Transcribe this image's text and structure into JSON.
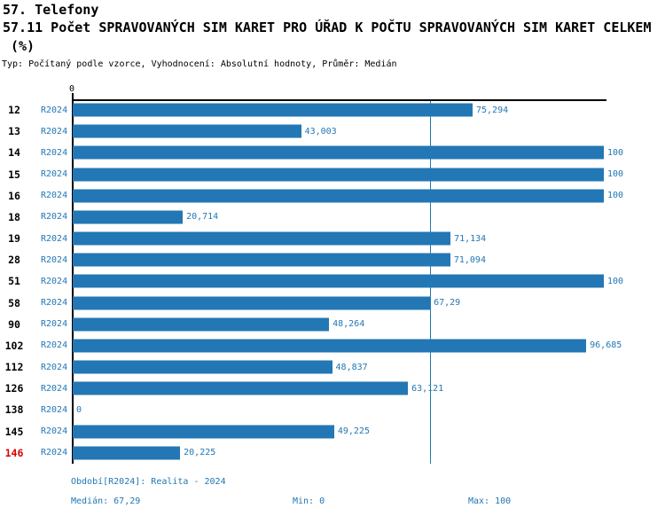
{
  "header": {
    "section_title": "57. Telefony",
    "title": "57.11 Počet SPRAVOVANÝCH SIM KARET PRO ÚŘAD K POČTU SPRAVOVANÝCH SIM KARET CELKEM",
    "title_unit": "(%)",
    "subtitle": "Typ: Počítaný podle vzorce, Vyhodnocení: Absolutní hodnoty, Průměr: Medián"
  },
  "chart_data": {
    "type": "bar",
    "orientation": "horizontal",
    "title": "57.11 Počet SPRAVOVANÝCH SIM KARET PRO ÚŘAD K POČTU SPRAVOVANÝCH SIM KARET CELKEM (%)",
    "categories": [
      "12",
      "13",
      "14",
      "15",
      "16",
      "18",
      "19",
      "28",
      "51",
      "58",
      "90",
      "102",
      "112",
      "126",
      "138",
      "145",
      "146"
    ],
    "series": [
      {
        "name": "R2024",
        "values": [
          75.294,
          43.003,
          100,
          100,
          100,
          20.714,
          71.134,
          71.094,
          100,
          67.29,
          48.264,
          96.685,
          48.837,
          63.121,
          0,
          49.225,
          20.225
        ]
      }
    ],
    "value_labels": [
      "75,294",
      "43,003",
      "100",
      "100",
      "100",
      "20,714",
      "71,134",
      "71,094",
      "100",
      "67,29",
      "48,264",
      "96,685",
      "48,837",
      "63,121",
      "0",
      "49,225",
      "20,225"
    ],
    "xlim": [
      0,
      100
    ],
    "axis_zero_label": "0",
    "median": 67.29,
    "min": 0,
    "max": 100,
    "highlighted_category": "146",
    "grid": false,
    "legend": false,
    "colors": {
      "bar": "#2277b4",
      "label": "#2277b4",
      "highlight": "#dd0000",
      "axis": "#000000"
    }
  },
  "footer": {
    "period_line": "Období[R2024]: Realita - 2024",
    "median_label": "Medián: 67,29",
    "min_label": "Min: 0",
    "max_label": "Max: 100"
  }
}
